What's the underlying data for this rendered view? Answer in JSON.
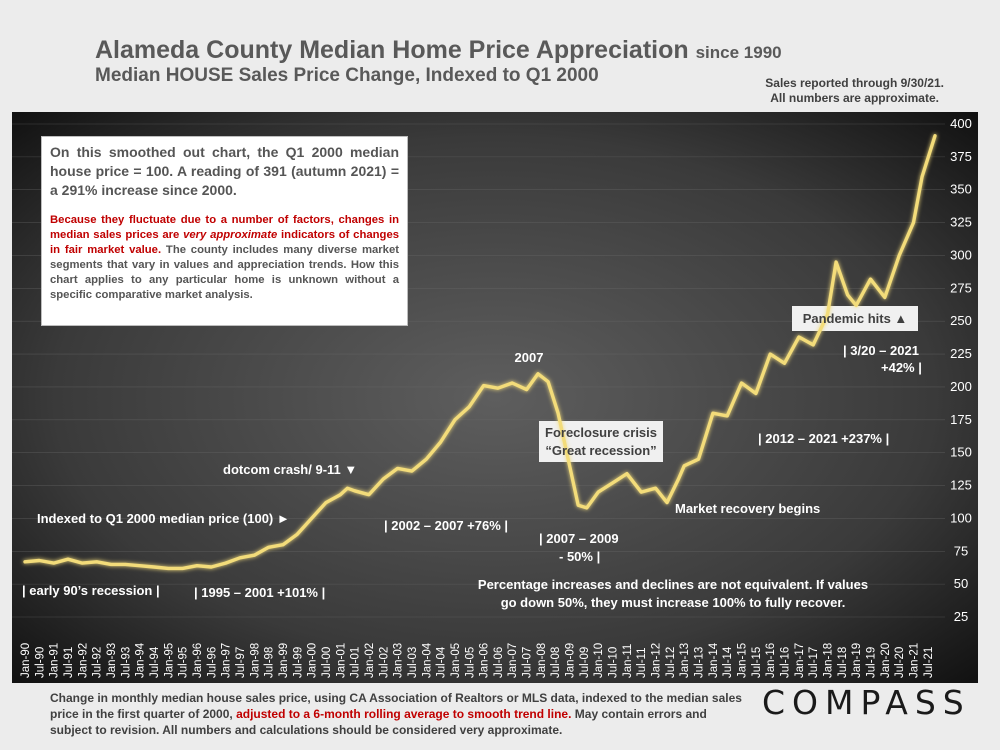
{
  "header": {
    "title": "Alameda County Median Home Price Appreciation",
    "title_since": "since 1990",
    "subtitle": "Median HOUSE Sales Price Change, Indexed to Q1 2000",
    "report_line1": "Sales reported through 9/30/21.",
    "report_line2": "All numbers are approximate."
  },
  "infobox": {
    "para1": "On this smoothed out chart, the Q1 2000 median house price = 100. A reading of 391 (autumn 2021) = a 291% increase since 2000.",
    "para2_red": "Because they fluctuate due to a number of factors, changes in median sales prices are",
    "para2_red_em": "very approximate",
    "para2_red_tail": "indicators of changes in fair market value.",
    "para2_rest": "The county includes many diverse market segments that vary in values and appreciation trends. How this chart applies to any particular home is unknown without a specific comparative market analysis."
  },
  "footer": {
    "text1": "Change in monthly median house sales price, using CA Association of Realtors or MLS data, indexed to the median sales price in the first quarter of 2000,",
    "text_red": "adjusted to a 6-month rolling average to smooth trend line.",
    "text2": "May contain errors and subject to revision. All numbers and calculations should be considered very approximate."
  },
  "logo": "COMPASS",
  "colors": {
    "plot_bg_center": "#5a5a5a",
    "plot_bg_edge": "#161616",
    "line": "#f3dc7a",
    "line_glow": "#fff3b0",
    "text_white": "#ffffff",
    "label_box": "#f2f2f2"
  },
  "chart_data": {
    "type": "line",
    "title": "Alameda County Median Home Price Appreciation since 1990",
    "subtitle": "Median HOUSE Sales Price Change, Indexed to Q1 2000",
    "xlabel": "",
    "ylabel": "",
    "ylim": [
      25,
      400
    ],
    "y_ticks": [
      25,
      50,
      75,
      100,
      125,
      150,
      175,
      200,
      225,
      250,
      275,
      300,
      325,
      350,
      375,
      400
    ],
    "x_tick_labels": [
      "Jan-90",
      "Jul-90",
      "Jan-91",
      "Jul-91",
      "Jan-92",
      "Jul-92",
      "Jan-93",
      "Jul-93",
      "Jan-94",
      "Jul-94",
      "Jan-95",
      "Jul-95",
      "Jan-96",
      "Jul-96",
      "Jan-97",
      "Jul-97",
      "Jan-98",
      "Jul-98",
      "Jan-99",
      "Jul-99",
      "Jan-00",
      "Jul-00",
      "Jan-01",
      "Jul-01",
      "Jan-02",
      "Jul-02",
      "Jan-03",
      "Jul-03",
      "Jan-04",
      "Jul-04",
      "Jan-05",
      "Jul-05",
      "Jan-06",
      "Jul-06",
      "Jan-07",
      "Jul-07",
      "Jan-08",
      "Jul-08",
      "Jan-09",
      "Jul-09",
      "Jan-10",
      "Jul-10",
      "Jan-11",
      "Jul-11",
      "Jan-12",
      "Jul-12",
      "Jan-13",
      "Jul-13",
      "Jan-14",
      "Jul-14",
      "Jan-15",
      "Jul-15",
      "Jan-16",
      "Jul-16",
      "Jan-17",
      "Jul-17",
      "Jan-18",
      "Jul-18",
      "Jan-19",
      "Jul-19",
      "Jan-20",
      "Jul-20",
      "Jan-21",
      "Jul-21"
    ],
    "series": [
      {
        "name": "Median house price index (Q1 2000 = 100)",
        "points": [
          [
            1990.0,
            67
          ],
          [
            1990.5,
            68
          ],
          [
            1991.0,
            66
          ],
          [
            1991.5,
            69
          ],
          [
            1992.0,
            66
          ],
          [
            1992.5,
            67
          ],
          [
            1993.0,
            65
          ],
          [
            1993.5,
            65
          ],
          [
            1994.0,
            64
          ],
          [
            1994.5,
            63
          ],
          [
            1995.0,
            62
          ],
          [
            1995.5,
            62
          ],
          [
            1996.0,
            64
          ],
          [
            1996.5,
            63
          ],
          [
            1997.0,
            66
          ],
          [
            1997.5,
            70
          ],
          [
            1998.0,
            72
          ],
          [
            1998.5,
            78
          ],
          [
            1999.0,
            80
          ],
          [
            1999.5,
            88
          ],
          [
            2000.0,
            100
          ],
          [
            2000.5,
            112
          ],
          [
            2001.0,
            118
          ],
          [
            2001.25,
            123
          ],
          [
            2001.5,
            121
          ],
          [
            2002.0,
            118
          ],
          [
            2002.5,
            130
          ],
          [
            2003.0,
            138
          ],
          [
            2003.5,
            136
          ],
          [
            2004.0,
            145
          ],
          [
            2004.5,
            158
          ],
          [
            2005.0,
            175
          ],
          [
            2005.5,
            185
          ],
          [
            2006.0,
            201
          ],
          [
            2006.5,
            199
          ],
          [
            2007.0,
            203
          ],
          [
            2007.5,
            198
          ],
          [
            2007.9,
            210
          ],
          [
            2008.25,
            204
          ],
          [
            2008.6,
            180
          ],
          [
            2009.0,
            140
          ],
          [
            2009.3,
            110
          ],
          [
            2009.6,
            108
          ],
          [
            2010.0,
            120
          ],
          [
            2010.5,
            127
          ],
          [
            2011.0,
            134
          ],
          [
            2011.5,
            120
          ],
          [
            2012.0,
            123
          ],
          [
            2012.4,
            112
          ],
          [
            2012.8,
            130
          ],
          [
            2013.0,
            140
          ],
          [
            2013.5,
            145
          ],
          [
            2014.0,
            180
          ],
          [
            2014.5,
            178
          ],
          [
            2015.0,
            203
          ],
          [
            2015.5,
            195
          ],
          [
            2016.0,
            225
          ],
          [
            2016.5,
            218
          ],
          [
            2017.0,
            238
          ],
          [
            2017.5,
            232
          ],
          [
            2018.0,
            255
          ],
          [
            2018.3,
            295
          ],
          [
            2018.7,
            270
          ],
          [
            2019.0,
            262
          ],
          [
            2019.5,
            282
          ],
          [
            2020.0,
            268
          ],
          [
            2020.5,
            300
          ],
          [
            2021.0,
            325
          ],
          [
            2021.3,
            360
          ],
          [
            2021.75,
            391
          ]
        ]
      }
    ],
    "annotations": {
      "early90s": "| early 90’s recession |",
      "appreciation_95_01": "| 1995 – 2001 +101% |",
      "indexed": "Indexed to Q1 2000 median price (100) ►",
      "dotcom": "dotcom crash/ 9-11 ▼",
      "appreciation_02_07": "| 2002 – 2007 +76% |",
      "peak_2007": "2007",
      "foreclosure_line1": "Foreclosure crisis",
      "foreclosure_line2": "“Great recession”",
      "decline_07_09_line1": "| 2007 – 2009",
      "decline_07_09_line2": "- 50% |",
      "recovery": "Market recovery begins",
      "appreciation_12_21": "| 2012 – 2021 +237% |",
      "pandemic": "Pandemic hits ▲",
      "pandemic_gain_line1": "| 3/20 – 2021",
      "pandemic_gain_line2": "+42% |",
      "note_line1": "Percentage increases and declines are not equivalent.  If values",
      "note_line2": "go down 50%, they must increase 100% to fully recover."
    }
  }
}
